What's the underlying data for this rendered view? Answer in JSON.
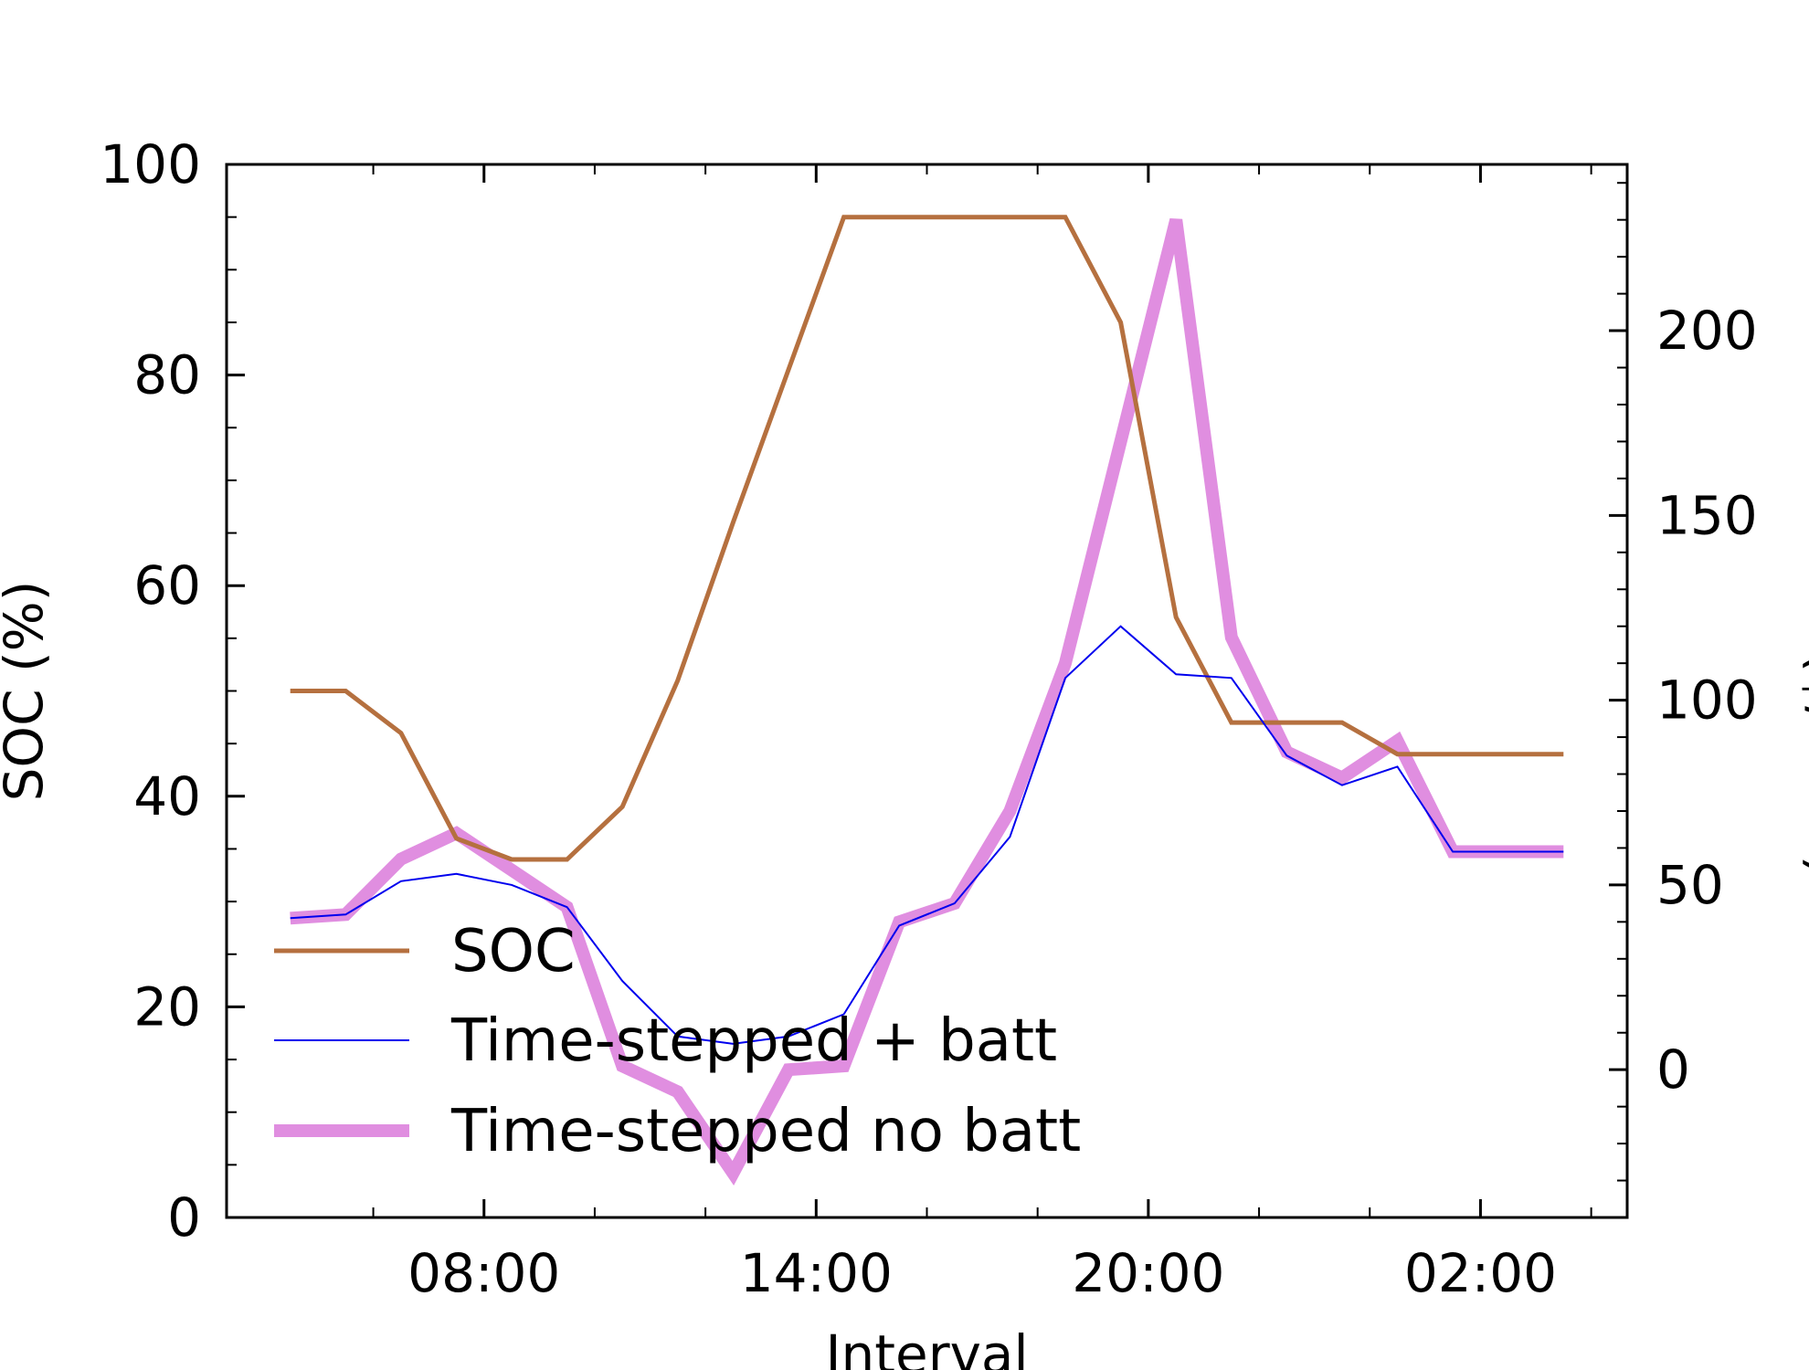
{
  "chart_data": {
    "type": "line",
    "xlabel": "Interval",
    "ylabel_left": "SOC (%)",
    "ylabel_right": "Price ($/MWh)",
    "x_ticks": [
      "08:00",
      "14:00",
      "20:00",
      "02:00"
    ],
    "x_tick_hours": [
      8,
      14,
      20,
      26
    ],
    "x_minor_tick_hours": [
      6,
      10,
      12,
      16,
      18,
      22,
      24,
      28
    ],
    "xlim_hours": [
      3.35,
      28.65
    ],
    "ylim_left": [
      0,
      100
    ],
    "yticks_left": [
      0,
      20,
      40,
      60,
      80,
      100
    ],
    "ylim_right": [
      -40,
      245
    ],
    "yticks_right": [
      0,
      50,
      100,
      150,
      200
    ],
    "legend_position": "lower-left",
    "series": [
      {
        "name": "SOC",
        "axis": "left",
        "color": "#b5703f",
        "x": [
          4.5,
          5.5,
          6.5,
          7.5,
          8.5,
          9.5,
          10.5,
          11.5,
          12.5,
          13.5,
          14.5,
          15.5,
          16.5,
          17.5,
          18.5,
          19.5,
          20.5,
          21.5,
          22.5,
          23.5,
          24.5,
          25.5,
          26.5,
          27.5
        ],
        "values": [
          50,
          50,
          46,
          36,
          34,
          34,
          39,
          51,
          66,
          80.5,
          95,
          95,
          95,
          95,
          95,
          85,
          57,
          47,
          47,
          47,
          44,
          44,
          44,
          44
        ]
      },
      {
        "name": "Time-stepped + batt",
        "axis": "right",
        "color": "#0000ee",
        "x": [
          4.5,
          5.5,
          6.5,
          7.5,
          8.5,
          9.5,
          10.5,
          11.5,
          12.5,
          13.5,
          14.5,
          15.5,
          16.5,
          17.5,
          18.5,
          19.5,
          20.5,
          21.5,
          22.5,
          23.5,
          24.5,
          25.5,
          26.5,
          27.5
        ],
        "values": [
          41,
          42,
          51,
          53,
          50,
          44,
          24,
          9,
          7,
          9,
          15,
          39,
          45,
          63,
          106,
          120,
          107,
          106,
          85,
          77,
          82,
          59,
          59,
          59
        ]
      },
      {
        "name": "Time-stepped no batt",
        "axis": "right",
        "color": "#e08ee0",
        "x": [
          4.5,
          5.5,
          6.5,
          7.5,
          8.5,
          9.5,
          10.5,
          11.5,
          12.5,
          13.5,
          14.5,
          15.5,
          16.5,
          17.5,
          18.5,
          19.5,
          20.5,
          21.5,
          22.5,
          23.5,
          24.5,
          25.5,
          26.5,
          27.5
        ],
        "values": [
          41,
          42,
          57,
          64,
          54,
          44,
          1,
          -6,
          -28,
          0,
          1,
          40,
          45,
          70,
          110,
          170,
          230,
          117,
          86,
          79,
          89,
          59,
          59,
          59
        ]
      }
    ]
  }
}
